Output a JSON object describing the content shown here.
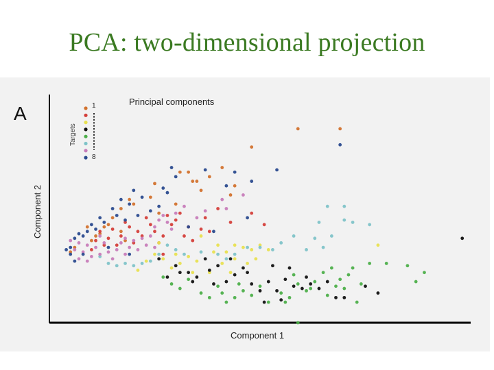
{
  "slide": {
    "title": "PCA: two-dimensional projection",
    "title_color": "#3b7a22"
  },
  "panel": {
    "letter": "A",
    "background": "#f2f2f2"
  },
  "chart_data": {
    "type": "scatter",
    "title": "Principal components",
    "xlabel": "Component 1",
    "ylabel": "Component 2",
    "grid": false,
    "xlim": [
      0,
      100
    ],
    "ylim": [
      0,
      100
    ],
    "ticks": "none",
    "legend": {
      "title": "Targets",
      "position": "top-left",
      "first_label": "1",
      "last_label": "8",
      "entries": [
        {
          "name": "1",
          "color": "#d2722e"
        },
        {
          "name": "2",
          "color": "#d43f3a"
        },
        {
          "name": "3",
          "color": "#e8e050"
        },
        {
          "name": "4",
          "color": "#111111"
        },
        {
          "name": "5",
          "color": "#4daf4a"
        },
        {
          "name": "6",
          "color": "#7fc3c8"
        },
        {
          "name": "7",
          "color": "#c77cb9"
        },
        {
          "name": "8",
          "color": "#2a4a8e"
        }
      ]
    },
    "series": [
      {
        "name": "1",
        "color": "#d2722e",
        "points": [
          [
            59,
            85
          ],
          [
            69,
            85
          ],
          [
            48,
            77
          ],
          [
            41,
            68
          ],
          [
            34,
            62
          ],
          [
            33,
            66
          ],
          [
            38,
            64
          ],
          [
            44,
            60
          ],
          [
            43,
            56
          ],
          [
            25,
            61
          ],
          [
            19,
            54
          ],
          [
            17,
            50
          ],
          [
            20,
            52
          ],
          [
            30,
            52
          ],
          [
            11,
            38
          ],
          [
            15,
            46
          ],
          [
            13,
            42
          ],
          [
            17,
            40
          ],
          [
            9,
            42
          ],
          [
            10,
            36
          ],
          [
            12,
            39
          ],
          [
            6,
            33
          ],
          [
            5,
            31
          ],
          [
            18,
            36
          ],
          [
            31,
            66
          ],
          [
            35,
            62
          ],
          [
            36,
            58
          ],
          [
            24,
            55
          ],
          [
            26,
            48
          ],
          [
            14,
            43
          ]
        ]
      },
      {
        "name": "2",
        "color": "#d43f3a",
        "points": [
          [
            36,
            41
          ],
          [
            33,
            42
          ],
          [
            32,
            38
          ],
          [
            30,
            45
          ],
          [
            27,
            38
          ],
          [
            26,
            35
          ],
          [
            25,
            40
          ],
          [
            24,
            43
          ],
          [
            22,
            38
          ],
          [
            21,
            40
          ],
          [
            20,
            35
          ],
          [
            19,
            42
          ],
          [
            17,
            38
          ],
          [
            16,
            34
          ],
          [
            15,
            41
          ],
          [
            14,
            37
          ],
          [
            13,
            34
          ],
          [
            12,
            40
          ],
          [
            11,
            36
          ],
          [
            10,
            32
          ],
          [
            23,
            46
          ],
          [
            28,
            47
          ],
          [
            40,
            50
          ],
          [
            43,
            44
          ],
          [
            48,
            48
          ],
          [
            51,
            43
          ],
          [
            37,
            46
          ],
          [
            29,
            43
          ],
          [
            18,
            44
          ],
          [
            31,
            48
          ],
          [
            27,
            30
          ],
          [
            34,
            36
          ],
          [
            38,
            40
          ]
        ]
      },
      {
        "name": "3",
        "color": "#e8e050",
        "points": [
          [
            36,
            38
          ],
          [
            39,
            31
          ],
          [
            42,
            31
          ],
          [
            44,
            34
          ],
          [
            46,
            33
          ],
          [
            48,
            32
          ],
          [
            50,
            34
          ],
          [
            52,
            32
          ],
          [
            49,
            28
          ],
          [
            40,
            34
          ],
          [
            35,
            27
          ],
          [
            33,
            29
          ],
          [
            31,
            26
          ],
          [
            29,
            24
          ],
          [
            27,
            28
          ],
          [
            25,
            30
          ],
          [
            23,
            27
          ],
          [
            41,
            26
          ],
          [
            38,
            22
          ],
          [
            44,
            28
          ],
          [
            47,
            26
          ],
          [
            34,
            22
          ],
          [
            78,
            34
          ],
          [
            21,
            23
          ],
          [
            30,
            30
          ],
          [
            43,
            22
          ],
          [
            26,
            35
          ]
        ]
      },
      {
        "name": "4",
        "color": "#111111",
        "points": [
          [
            98,
            37
          ],
          [
            26,
            28
          ],
          [
            30,
            25
          ],
          [
            33,
            22
          ],
          [
            35,
            20
          ],
          [
            38,
            23
          ],
          [
            40,
            25
          ],
          [
            42,
            18
          ],
          [
            44,
            21
          ],
          [
            46,
            24
          ],
          [
            48,
            17
          ],
          [
            50,
            14
          ],
          [
            52,
            18
          ],
          [
            54,
            14
          ],
          [
            56,
            19
          ],
          [
            58,
            16
          ],
          [
            60,
            15
          ],
          [
            62,
            17
          ],
          [
            64,
            15
          ],
          [
            66,
            18
          ],
          [
            70,
            11
          ],
          [
            75,
            16
          ],
          [
            78,
            13
          ],
          [
            68,
            11
          ],
          [
            55,
            10
          ],
          [
            51,
            9
          ],
          [
            37,
            28
          ],
          [
            43,
            28
          ],
          [
            47,
            22
          ],
          [
            57,
            24
          ],
          [
            31,
            22
          ],
          [
            28,
            20
          ],
          [
            34,
            18
          ],
          [
            39,
            17
          ],
          [
            53,
            25
          ],
          [
            61,
            20
          ]
        ]
      },
      {
        "name": "5",
        "color": "#4daf4a",
        "points": [
          [
            59,
            0
          ],
          [
            27,
            20
          ],
          [
            29,
            17
          ],
          [
            31,
            15
          ],
          [
            33,
            19
          ],
          [
            36,
            13
          ],
          [
            38,
            11
          ],
          [
            40,
            16
          ],
          [
            41,
            13
          ],
          [
            42,
            9
          ],
          [
            44,
            11
          ],
          [
            46,
            14
          ],
          [
            48,
            12
          ],
          [
            50,
            16
          ],
          [
            52,
            9
          ],
          [
            55,
            13
          ],
          [
            57,
            11
          ],
          [
            59,
            17
          ],
          [
            61,
            14
          ],
          [
            63,
            18
          ],
          [
            65,
            22
          ],
          [
            67,
            24
          ],
          [
            69,
            19
          ],
          [
            71,
            21
          ],
          [
            72,
            24
          ],
          [
            74,
            17
          ],
          [
            76,
            26
          ],
          [
            80,
            26
          ],
          [
            85,
            25
          ],
          [
            87,
            18
          ],
          [
            89,
            22
          ],
          [
            66,
            12
          ],
          [
            68,
            16
          ],
          [
            70,
            15
          ],
          [
            73,
            9
          ],
          [
            62,
            15
          ],
          [
            58,
            21
          ],
          [
            56,
            9
          ],
          [
            45,
            17
          ]
        ]
      },
      {
        "name": "6",
        "color": "#7fc3c8",
        "points": [
          [
            66,
            51
          ],
          [
            70,
            51
          ],
          [
            64,
            44
          ],
          [
            70,
            45
          ],
          [
            72,
            44
          ],
          [
            67,
            38
          ],
          [
            76,
            43
          ],
          [
            63,
            37
          ],
          [
            65,
            33
          ],
          [
            61,
            32
          ],
          [
            53,
            32
          ],
          [
            50,
            33
          ],
          [
            47,
            33
          ],
          [
            44,
            30
          ],
          [
            40,
            30
          ],
          [
            36,
            31
          ],
          [
            32,
            30
          ],
          [
            30,
            32
          ],
          [
            28,
            34
          ],
          [
            26,
            30
          ],
          [
            24,
            27
          ],
          [
            22,
            26
          ],
          [
            20,
            25
          ],
          [
            18,
            26
          ],
          [
            16,
            25
          ],
          [
            14,
            26
          ],
          [
            12,
            29
          ],
          [
            58,
            38
          ],
          [
            55,
            35
          ],
          [
            42,
            28
          ]
        ]
      },
      {
        "name": "7",
        "color": "#c77cb9",
        "points": [
          [
            5,
            36
          ],
          [
            6,
            32
          ],
          [
            7,
            35
          ],
          [
            8,
            31
          ],
          [
            9,
            27
          ],
          [
            10,
            29
          ],
          [
            11,
            33
          ],
          [
            12,
            30
          ],
          [
            13,
            35
          ],
          [
            14,
            31
          ],
          [
            15,
            28
          ],
          [
            16,
            32
          ],
          [
            17,
            35
          ],
          [
            18,
            30
          ],
          [
            19,
            33
          ],
          [
            20,
            36
          ],
          [
            21,
            32
          ],
          [
            22,
            37
          ],
          [
            23,
            34
          ],
          [
            24,
            38
          ],
          [
            25,
            42
          ],
          [
            26,
            45
          ],
          [
            27,
            47
          ],
          [
            28,
            44
          ],
          [
            29,
            41
          ],
          [
            30,
            48
          ],
          [
            32,
            51
          ],
          [
            37,
            49
          ],
          [
            42,
            50
          ],
          [
            46,
            56
          ],
          [
            41,
            54
          ],
          [
            35,
            46
          ],
          [
            12,
            38
          ],
          [
            7,
            28
          ],
          [
            9,
            34
          ],
          [
            18,
            37
          ],
          [
            25,
            33
          ]
        ]
      },
      {
        "name": "8",
        "color": "#2a4a8e",
        "points": [
          [
            69,
            78
          ],
          [
            37,
            67
          ],
          [
            44,
            66
          ],
          [
            42,
            60
          ],
          [
            48,
            62
          ],
          [
            54,
            67
          ],
          [
            29,
            68
          ],
          [
            30,
            64
          ],
          [
            28,
            57
          ],
          [
            27,
            59
          ],
          [
            22,
            55
          ],
          [
            20,
            58
          ],
          [
            19,
            52
          ],
          [
            17,
            54
          ],
          [
            16,
            47
          ],
          [
            15,
            50
          ],
          [
            13,
            44
          ],
          [
            12,
            46
          ],
          [
            11,
            41
          ],
          [
            10,
            43
          ],
          [
            9,
            40
          ],
          [
            8,
            38
          ],
          [
            7,
            39
          ],
          [
            6,
            37
          ],
          [
            5,
            33
          ],
          [
            4,
            32
          ],
          [
            5,
            30
          ],
          [
            6,
            27
          ],
          [
            18,
            45
          ],
          [
            21,
            47
          ],
          [
            24,
            49
          ],
          [
            26,
            51
          ],
          [
            33,
            42
          ],
          [
            39,
            40
          ],
          [
            47,
            46
          ],
          [
            8,
            30
          ],
          [
            14,
            33
          ],
          [
            19,
            30
          ]
        ]
      }
    ]
  }
}
